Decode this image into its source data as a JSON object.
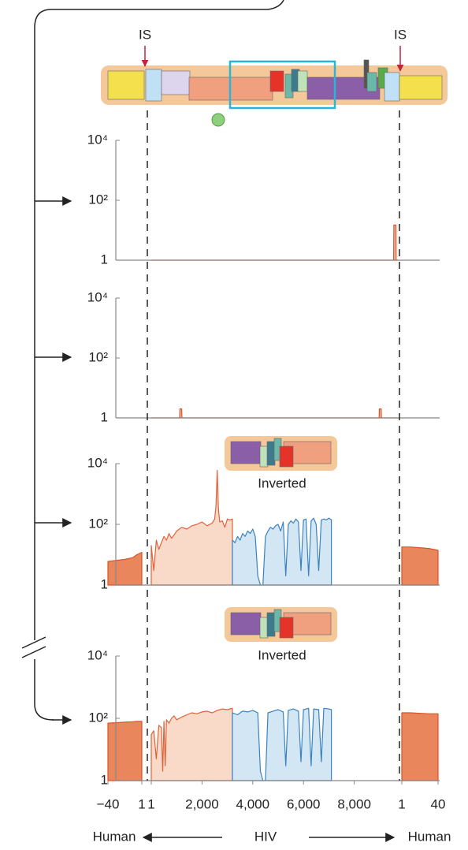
{
  "genome": {
    "is_labels": [
      "IS",
      "IS"
    ]
  },
  "x_axis": {
    "segments": [
      {
        "xlim": [
          -40,
          1
        ],
        "xticks": [
          {
            "value": -40,
            "label": "−40"
          },
          1
        ]
      },
      {
        "xlim": [
          1,
          9719
        ],
        "xticks": [
          1,
          {
            "value": 2000,
            "label": "2,000"
          },
          {
            "value": 4000,
            "label": "4,000"
          },
          {
            "value": 6000,
            "label": "6,000"
          },
          {
            "value": 8000,
            "label": "8,000"
          }
        ]
      },
      {
        "xlim": [
          1,
          40
        ],
        "xticks": [
          1,
          40
        ]
      }
    ],
    "labels": [
      "Human",
      "HIV",
      "Human"
    ]
  },
  "chart_data": [
    {
      "type": "area",
      "log_y": true,
      "ylim": [
        1,
        10000
      ],
      "yticks": [
        1,
        {
          "value": 100,
          "label": "10²"
        },
        {
          "value": 10000,
          "label": "10⁴"
        }
      ],
      "series": [
        {
          "segment": 1,
          "color": "#d9542a",
          "fill": "#f4b89c",
          "x": [
            1,
            9550,
            9560,
            9640,
            9650,
            9719
          ],
          "values": [
            1,
            1,
            15,
            15,
            1,
            1
          ]
        }
      ]
    },
    {
      "type": "area",
      "log_y": true,
      "ylim": [
        1,
        10000
      ],
      "yticks": [
        1,
        {
          "value": 100,
          "label": "10²"
        },
        {
          "value": 10000,
          "label": "10⁴"
        }
      ],
      "series": [
        {
          "segment": 1,
          "color": "#d9542a",
          "fill": "#f4b89c",
          "x": [
            1,
            1120,
            1130,
            1200,
            1210,
            8980,
            8990,
            9060,
            9070,
            9719
          ],
          "values": [
            1,
            1,
            2,
            2,
            1,
            1,
            2,
            2,
            1,
            1
          ]
        }
      ]
    },
    {
      "type": "area",
      "log_y": true,
      "ylim": [
        1,
        10000
      ],
      "annotation": "Inverted",
      "yticks": [
        1,
        {
          "value": 100,
          "label": "10²"
        },
        {
          "value": 10000,
          "label": "10⁴"
        }
      ],
      "series": [
        {
          "segment": 0,
          "color": "#d9542a",
          "fill": "#e9865c",
          "x": [
            -40,
            -30,
            -20,
            -10,
            -5,
            1
          ],
          "values": [
            6,
            6.5,
            7,
            8,
            10,
            12
          ]
        },
        {
          "segment": 1,
          "color": "#e0623a",
          "fill": "#f9d9c8",
          "x": [
            1,
            100,
            200,
            300,
            400,
            500,
            600,
            700,
            800,
            900,
            1000,
            1200,
            1400,
            1600,
            1800,
            2000,
            2200,
            2400,
            2500,
            2550,
            2600,
            2650,
            2700,
            2800,
            2900,
            3000,
            3100,
            3200
          ],
          "values": [
            20,
            3,
            30,
            15,
            25,
            40,
            30,
            50,
            35,
            45,
            60,
            80,
            70,
            90,
            100,
            120,
            90,
            110,
            150,
            400,
            6000,
            300,
            120,
            130,
            80,
            150,
            140,
            150
          ]
        },
        {
          "segment": 1,
          "color": "#3b82c0",
          "fill": "#d2e6f4",
          "x": [
            3200,
            3300,
            3400,
            3500,
            3600,
            3700,
            3800,
            3900,
            4000,
            4100,
            4200,
            4300,
            4400,
            4500,
            4600,
            4700,
            4800,
            4900,
            5000,
            5100,
            5200,
            5300,
            5400,
            5500,
            5600,
            5700,
            5800,
            5900,
            6000,
            6100,
            6200,
            6300,
            6400,
            6500,
            6600,
            6700,
            6800,
            6900,
            7000,
            7100
          ],
          "values": [
            30,
            25,
            40,
            30,
            50,
            40,
            60,
            50,
            70,
            40,
            2,
            1,
            1,
            40,
            60,
            80,
            70,
            90,
            100,
            60,
            120,
            2,
            100,
            130,
            110,
            150,
            120,
            3,
            140,
            150,
            2,
            130,
            160,
            100,
            3,
            140,
            150,
            140,
            160,
            140
          ]
        },
        {
          "segment": 2,
          "color": "#d9542a",
          "fill": "#e9865c",
          "x": [
            1,
            10,
            20,
            30,
            40
          ],
          "values": [
            18,
            18,
            17,
            16,
            14
          ]
        }
      ]
    },
    {
      "type": "area",
      "log_y": true,
      "ylim": [
        1,
        10000
      ],
      "annotation": "Inverted",
      "yticks": [
        1,
        {
          "value": 100,
          "label": "10²"
        },
        {
          "value": 10000,
          "label": "10⁴"
        }
      ],
      "series": [
        {
          "segment": 0,
          "color": "#d9542a",
          "fill": "#e9865c",
          "x": [
            -40,
            -30,
            -20,
            -10,
            -5,
            1
          ],
          "values": [
            70,
            72,
            75,
            78,
            80,
            80
          ]
        },
        {
          "segment": 1,
          "color": "#e0623a",
          "fill": "#f9d9c8",
          "x": [
            1,
            100,
            200,
            300,
            400,
            450,
            500,
            550,
            600,
            700,
            800,
            900,
            1000,
            1200,
            1400,
            1600,
            1800,
            2000,
            2200,
            2400,
            2600,
            2800,
            3000,
            3200
          ],
          "values": [
            30,
            40,
            5,
            60,
            50,
            2,
            80,
            3,
            90,
            70,
            100,
            120,
            90,
            110,
            130,
            150,
            140,
            160,
            170,
            150,
            180,
            200,
            190,
            210
          ]
        },
        {
          "segment": 1,
          "color": "#3b82c0",
          "fill": "#d2e6f4",
          "x": [
            3200,
            3400,
            3600,
            3800,
            4000,
            4200,
            4300,
            4400,
            4500,
            4600,
            4800,
            5000,
            5200,
            5300,
            5400,
            5600,
            5800,
            5900,
            6000,
            6200,
            6300,
            6400,
            6600,
            6700,
            6800,
            7000,
            7100
          ],
          "values": [
            150,
            130,
            170,
            160,
            180,
            150,
            2,
            1,
            1,
            150,
            170,
            190,
            160,
            3,
            180,
            200,
            170,
            4,
            190,
            210,
            3,
            200,
            190,
            4,
            210,
            200,
            190
          ]
        },
        {
          "segment": 2,
          "color": "#d9542a",
          "fill": "#e9865c",
          "x": [
            1,
            10,
            20,
            30,
            40
          ],
          "values": [
            150,
            150,
            145,
            140,
            140
          ]
        }
      ]
    }
  ]
}
